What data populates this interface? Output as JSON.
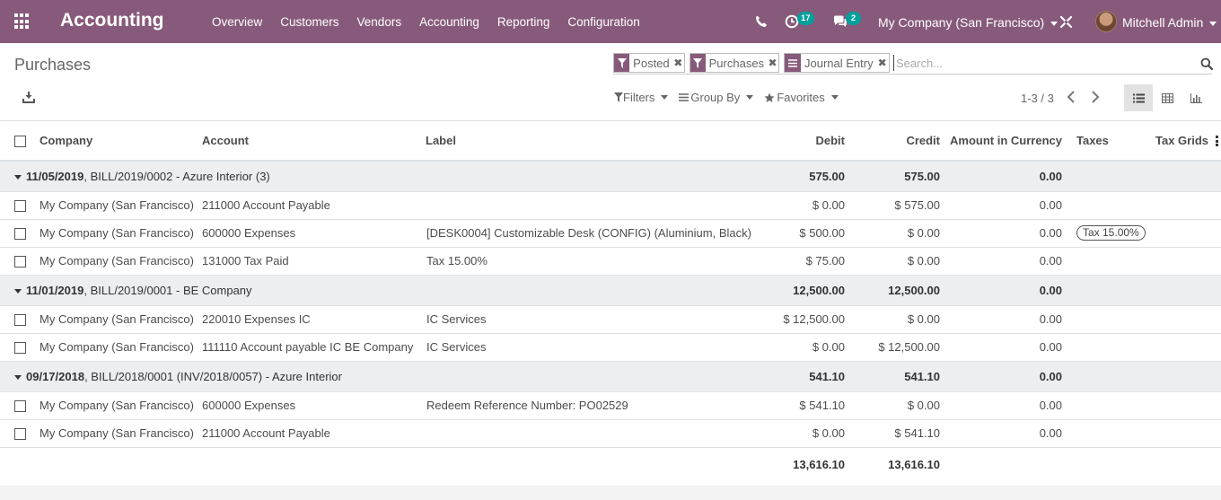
{
  "navbar": {
    "app_title": "Accounting",
    "menu": [
      "Overview",
      "Customers",
      "Vendors",
      "Accounting",
      "Reporting",
      "Configuration"
    ],
    "activity_count": "17",
    "message_count": "2",
    "company": "My Company (San Francisco)",
    "user": "Mitchell Admin",
    "brand_color": "#875a7b",
    "badge_color": "#00a09d"
  },
  "control_panel": {
    "breadcrumb": "Purchases",
    "facets": [
      {
        "label": "Posted",
        "icon": "filter-icon"
      },
      {
        "label": "Purchases",
        "icon": "filter-icon"
      },
      {
        "label": "Journal Entry",
        "icon": "group-by-icon"
      }
    ],
    "search_placeholder": "Search...",
    "filters_label": "Filters",
    "groupby_label": "Group By",
    "favorites_label": "Favorites",
    "pager": "1-3 / 3"
  },
  "table": {
    "headers": {
      "company": "Company",
      "account": "Account",
      "label": "Label",
      "debit": "Debit",
      "credit": "Credit",
      "amount_currency": "Amount in Currency",
      "taxes": "Taxes",
      "tax_grids": "Tax Grids"
    },
    "groups": [
      {
        "date": "11/05/2019",
        "rest": ", BILL/2019/0002 - Azure Interior (3)",
        "debit": "575.00",
        "credit": "575.00",
        "amount": "0.00",
        "rows": [
          {
            "company": "My Company (San Francisco)",
            "account": "211000 Account Payable",
            "label": "",
            "debit": "$ 0.00",
            "credit": "$ 575.00",
            "amount": "0.00",
            "tax": ""
          },
          {
            "company": "My Company (San Francisco)",
            "account": "600000 Expenses",
            "label": "[DESK0004] Customizable Desk (CONFIG) (Aluminium, Black)",
            "debit": "$ 500.00",
            "credit": "$ 0.00",
            "amount": "0.00",
            "tax": "Tax 15.00%"
          },
          {
            "company": "My Company (San Francisco)",
            "account": "131000 Tax Paid",
            "label": "Tax 15.00%",
            "debit": "$ 75.00",
            "credit": "$ 0.00",
            "amount": "0.00",
            "tax": ""
          }
        ]
      },
      {
        "date": "11/01/2019",
        "rest": ", BILL/2019/0001 - BE Company",
        "debit": "12,500.00",
        "credit": "12,500.00",
        "amount": "0.00",
        "rows": [
          {
            "company": "My Company (San Francisco)",
            "account": "220010 Expenses IC",
            "label": "IC Services",
            "debit": "$ 12,500.00",
            "credit": "$ 0.00",
            "amount": "0.00",
            "tax": ""
          },
          {
            "company": "My Company (San Francisco)",
            "account": "111110 Account payable IC BE Company",
            "label": "IC Services",
            "debit": "$ 0.00",
            "credit": "$ 12,500.00",
            "amount": "0.00",
            "tax": ""
          }
        ]
      },
      {
        "date": "09/17/2018",
        "rest": ", BILL/2018/0001    (INV/2018/0057) - Azure Interior",
        "debit": "541.10",
        "credit": "541.10",
        "amount": "0.00",
        "rows": [
          {
            "company": "My Company (San Francisco)",
            "account": "600000 Expenses",
            "label": "Redeem Reference Number: PO02529",
            "debit": "$ 541.10",
            "credit": "$ 0.00",
            "amount": "0.00",
            "tax": ""
          },
          {
            "company": "My Company (San Francisco)",
            "account": "211000 Account Payable",
            "label": "",
            "debit": "$ 0.00",
            "credit": "$ 541.10",
            "amount": "0.00",
            "tax": ""
          }
        ]
      }
    ],
    "totals": {
      "debit": "13,616.10",
      "credit": "13,616.10"
    }
  }
}
